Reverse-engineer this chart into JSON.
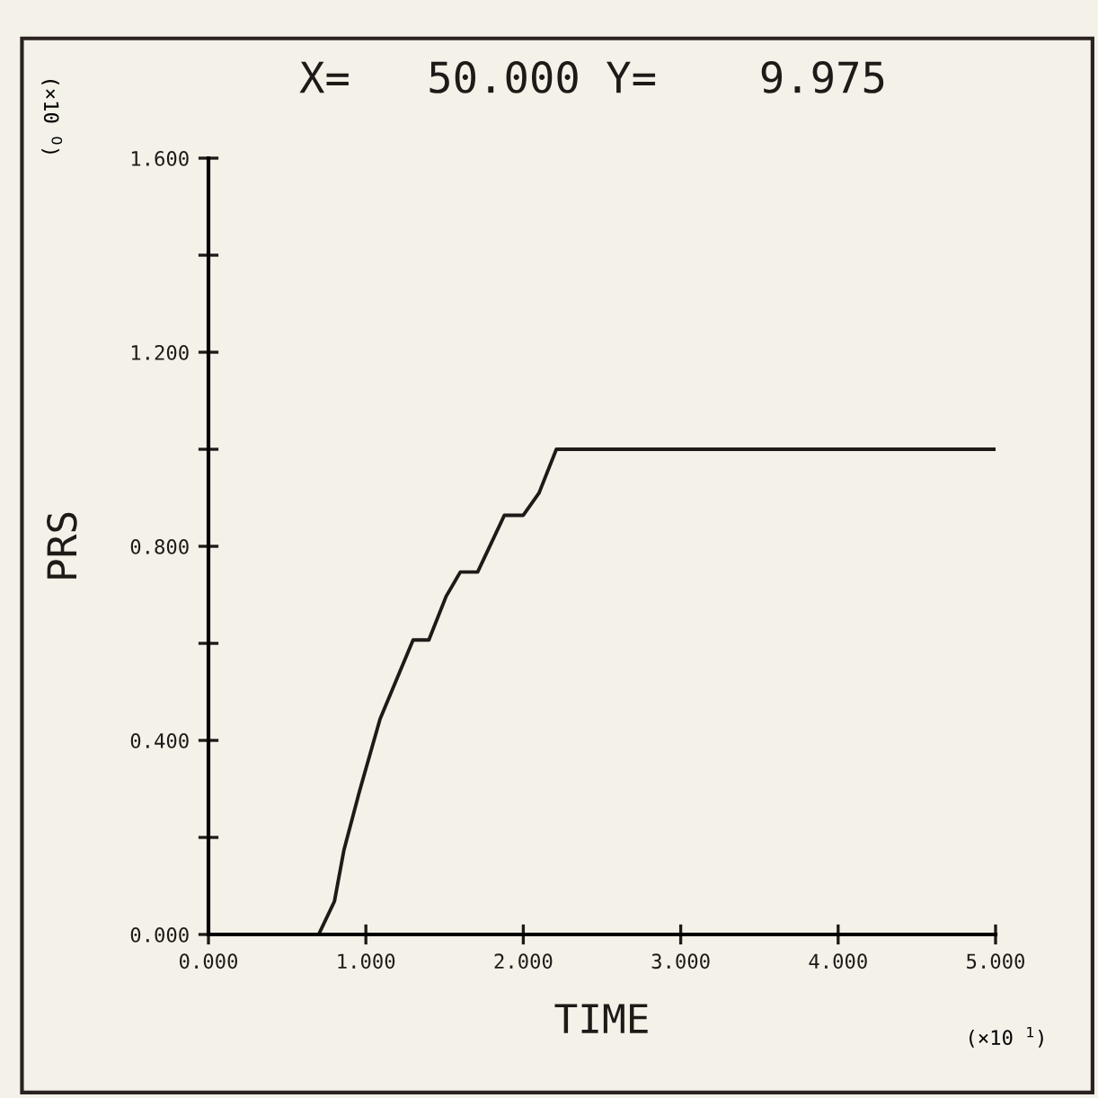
{
  "chart_data": {
    "type": "line",
    "title": "X=   50.000 Y=    9.975",
    "xlabel": "TIME",
    "ylabel": "PRS",
    "annotations": [
      "(×10 $^{1}$)",
      "(×10 $^{0}$)"
    ],
    "x": [
      0,
      0.7,
      0.8,
      0.86,
      0.96,
      1.09,
      1.3,
      1.4,
      1.51,
      1.6,
      1.71,
      1.88,
      2.0,
      2.1,
      2.21,
      5.0
    ],
    "series": [
      {
        "color": "#1e1a18",
        "values": [
          0,
          0,
          0.068,
          0.173,
          0.296,
          0.444,
          0.607,
          0.607,
          0.697,
          0.747,
          0.747,
          0.864,
          0.864,
          0.91,
          1.0,
          1.0
        ]
      }
    ],
    "xlim": [
      0,
      5
    ],
    "ylim": [
      0,
      1.6
    ],
    "xticks": [
      {
        "value": 0,
        "label": "0.000"
      },
      {
        "value": 1,
        "label": "1.000"
      },
      {
        "value": 2,
        "label": "2.000"
      },
      {
        "value": 3,
        "label": "3.000"
      },
      {
        "value": 4,
        "label": "4.000"
      },
      {
        "value": 5,
        "label": "5.000"
      }
    ],
    "yticks": [
      {
        "value": 0,
        "label": "0.000"
      },
      {
        "value": 0.2,
        "label": null
      },
      {
        "value": 0.4,
        "label": "0.400"
      },
      {
        "value": 0.6,
        "label": null
      },
      {
        "value": 0.8,
        "label": "0.800"
      },
      {
        "value": 1.0,
        "label": null
      },
      {
        "value": 1.2,
        "label": "1.200"
      },
      {
        "value": 1.4,
        "label": null
      },
      {
        "value": 1.6,
        "label": "1.600"
      }
    ],
    "grid": false,
    "legend": false,
    "marker": "none",
    "line_style": "solid"
  }
}
